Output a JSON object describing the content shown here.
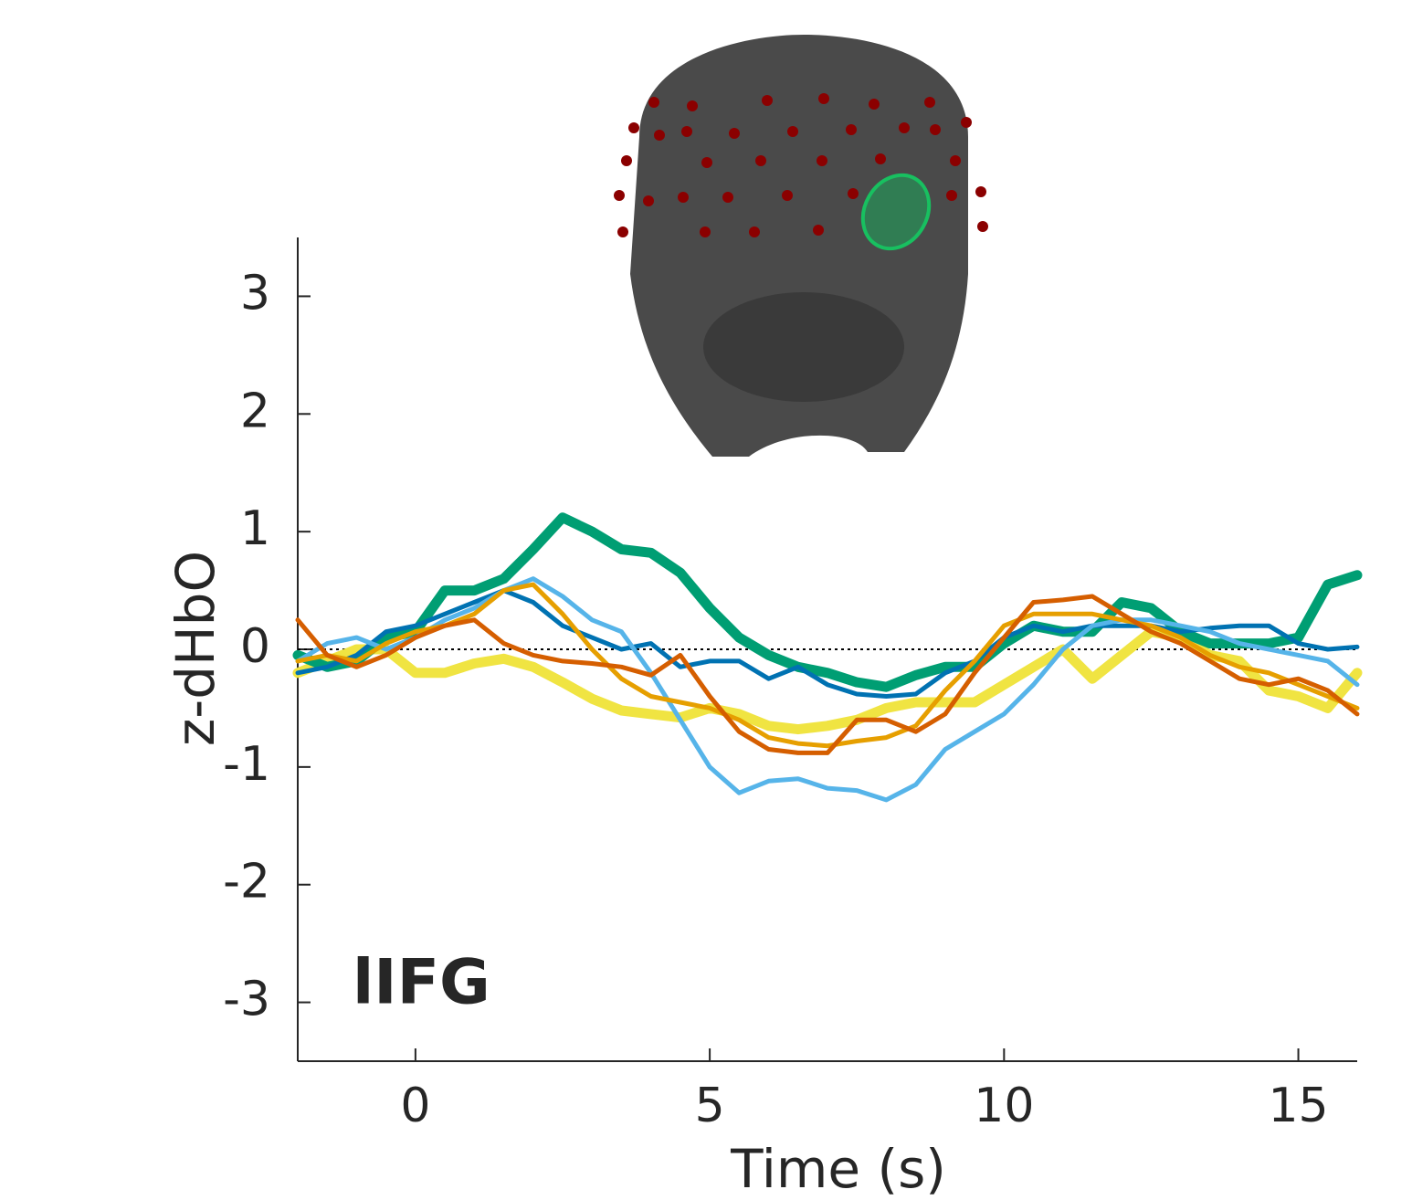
{
  "chart_data": {
    "type": "line",
    "xlabel": "Time (s)",
    "ylabel": "z-dHbO",
    "annotation": "lIFG",
    "x": [
      -2,
      -1.5,
      -1,
      -0.5,
      0,
      0.5,
      1,
      1.5,
      2,
      2.5,
      3,
      3.5,
      4,
      4.5,
      5,
      5.5,
      6,
      6.5,
      7,
      7.5,
      8,
      8.5,
      9,
      9.5,
      10,
      10.5,
      11,
      11.5,
      12,
      12.5,
      13,
      13.5,
      14,
      14.5,
      15,
      15.5,
      16
    ],
    "xlim": [
      -2,
      16
    ],
    "xticks": [
      0,
      5,
      10,
      15
    ],
    "ylim": [
      -3.5,
      3.5
    ],
    "yticks": [
      -3,
      -2,
      -1,
      0,
      1,
      2,
      3
    ],
    "hline": 0,
    "series": [
      {
        "color": "#f0e442",
        "values": [
          -0.2,
          -0.1,
          0.0,
          0.0,
          -0.2,
          -0.2,
          -0.12,
          -0.08,
          -0.15,
          -0.28,
          -0.42,
          -0.52,
          -0.55,
          -0.58,
          -0.5,
          -0.55,
          -0.65,
          -0.68,
          -0.65,
          -0.6,
          -0.5,
          -0.45,
          -0.45,
          -0.45,
          -0.3,
          -0.15,
          0.0,
          -0.25,
          -0.05,
          0.15,
          0.1,
          -0.05,
          -0.1,
          -0.35,
          -0.4,
          -0.5,
          -0.2
        ]
      },
      {
        "color": "#009e73",
        "values": [
          -0.05,
          -0.15,
          -0.1,
          0.1,
          0.15,
          0.5,
          0.5,
          0.6,
          0.85,
          1.12,
          1.0,
          0.85,
          0.82,
          0.65,
          0.35,
          0.1,
          -0.05,
          -0.15,
          -0.2,
          -0.28,
          -0.32,
          -0.22,
          -0.15,
          -0.15,
          0.05,
          0.2,
          0.15,
          0.15,
          0.4,
          0.35,
          0.15,
          0.05,
          0.05,
          0.05,
          0.1,
          0.55,
          0.63
        ]
      },
      {
        "color": "#0072b2",
        "values": [
          -0.2,
          -0.15,
          -0.05,
          0.15,
          0.2,
          0.3,
          0.4,
          0.5,
          0.4,
          0.2,
          0.1,
          0.0,
          0.05,
          -0.15,
          -0.1,
          -0.1,
          -0.25,
          -0.15,
          -0.3,
          -0.38,
          -0.4,
          -0.38,
          -0.2,
          -0.1,
          0.1,
          0.2,
          0.15,
          0.2,
          0.2,
          0.2,
          0.15,
          0.18,
          0.2,
          0.2,
          0.05,
          0.0,
          0.02
        ]
      },
      {
        "color": "#56b4e9",
        "values": [
          -0.1,
          0.05,
          0.1,
          0.0,
          0.1,
          0.25,
          0.35,
          0.5,
          0.6,
          0.45,
          0.25,
          0.15,
          -0.2,
          -0.6,
          -1.0,
          -1.22,
          -1.12,
          -1.1,
          -1.18,
          -1.2,
          -1.28,
          -1.15,
          -0.85,
          -0.7,
          -0.55,
          -0.3,
          0.0,
          0.2,
          0.25,
          0.25,
          0.2,
          0.15,
          0.05,
          0.0,
          -0.05,
          -0.1,
          -0.3
        ]
      },
      {
        "color": "#e69f00",
        "values": [
          -0.1,
          -0.05,
          -0.1,
          0.05,
          0.15,
          0.2,
          0.3,
          0.5,
          0.55,
          0.3,
          0.0,
          -0.25,
          -0.4,
          -0.45,
          -0.5,
          -0.6,
          -0.75,
          -0.8,
          -0.82,
          -0.78,
          -0.75,
          -0.65,
          -0.35,
          -0.1,
          0.2,
          0.3,
          0.3,
          0.3,
          0.25,
          0.2,
          0.1,
          -0.05,
          -0.15,
          -0.2,
          -0.3,
          -0.4,
          -0.5
        ]
      },
      {
        "color": "#d55e00",
        "values": [
          0.25,
          -0.05,
          -0.15,
          -0.05,
          0.1,
          0.2,
          0.25,
          0.05,
          -0.05,
          -0.1,
          -0.12,
          -0.15,
          -0.22,
          -0.05,
          -0.4,
          -0.7,
          -0.85,
          -0.88,
          -0.88,
          -0.6,
          -0.6,
          -0.7,
          -0.55,
          -0.2,
          0.1,
          0.4,
          0.42,
          0.45,
          0.3,
          0.15,
          0.05,
          -0.1,
          -0.25,
          -0.3,
          -0.25,
          -0.35,
          -0.55
        ]
      }
    ]
  }
}
